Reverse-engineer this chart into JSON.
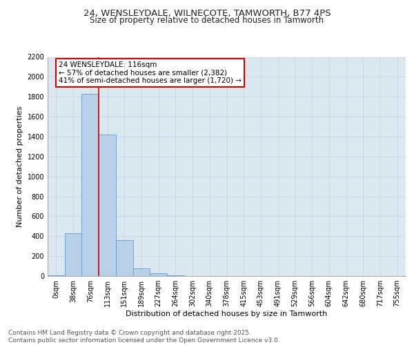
{
  "title_line1": "24, WENSLEYDALE, WILNECOTE, TAMWORTH, B77 4PS",
  "title_line2": "Size of property relative to detached houses in Tamworth",
  "xlabel": "Distribution of detached houses by size in Tamworth",
  "ylabel": "Number of detached properties",
  "bar_labels": [
    "0sqm",
    "38sqm",
    "76sqm",
    "113sqm",
    "151sqm",
    "189sqm",
    "227sqm",
    "264sqm",
    "302sqm",
    "340sqm",
    "378sqm",
    "415sqm",
    "453sqm",
    "491sqm",
    "529sqm",
    "566sqm",
    "604sqm",
    "642sqm",
    "680sqm",
    "717sqm",
    "755sqm"
  ],
  "bar_values": [
    10,
    430,
    1830,
    1420,
    360,
    75,
    25,
    5,
    0,
    0,
    0,
    0,
    0,
    0,
    0,
    0,
    0,
    0,
    0,
    0,
    0
  ],
  "bar_color": "#b8d0e8",
  "bar_edge_color": "#6699cc",
  "property_line_x": 2.5,
  "annotation_text": "24 WENSLEYDALE: 116sqm\n← 57% of detached houses are smaller (2,382)\n41% of semi-detached houses are larger (1,720) →",
  "annotation_box_color": "#cc0000",
  "vline_color": "#cc0000",
  "ylim": [
    0,
    2200
  ],
  "yticks": [
    0,
    200,
    400,
    600,
    800,
    1000,
    1200,
    1400,
    1600,
    1800,
    2000,
    2200
  ],
  "grid_color": "#c8d8e8",
  "background_color": "#dce8f0",
  "footer_text": "Contains HM Land Registry data © Crown copyright and database right 2025.\nContains public sector information licensed under the Open Government Licence v3.0.",
  "title_fontsize": 9.5,
  "subtitle_fontsize": 8.5,
  "axis_label_fontsize": 8,
  "tick_fontsize": 7,
  "annotation_fontsize": 7.5,
  "footer_fontsize": 6.5
}
